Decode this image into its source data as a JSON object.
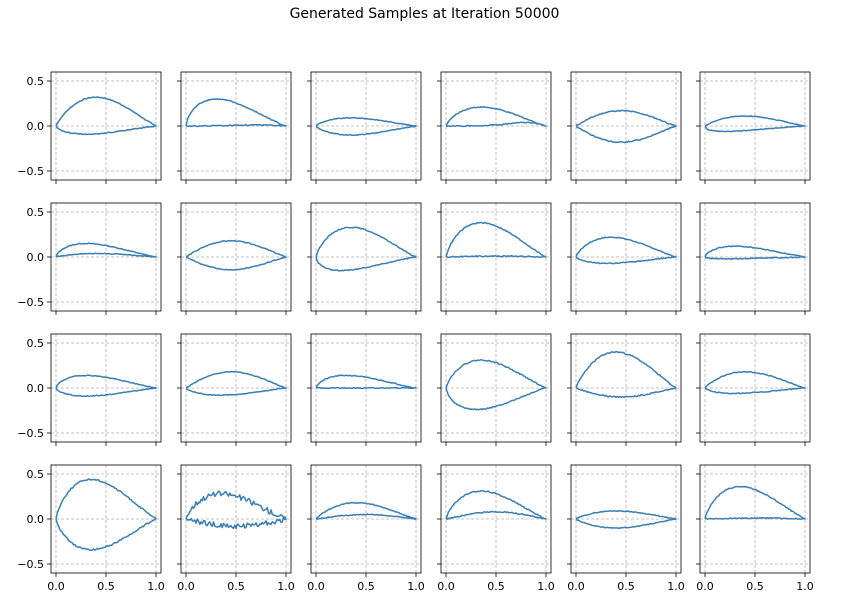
{
  "figure": {
    "title": "Generated Samples at Iteration 50000"
  },
  "colors": {
    "line": "#3a7fb3",
    "grid": "#b0b0b0",
    "axes": "#000000"
  },
  "chart_data": {
    "type": "line",
    "layout": {
      "rows": 4,
      "cols": 6
    },
    "shared_axes": true,
    "xlim": [
      -0.05,
      1.05
    ],
    "ylim": [
      -0.6,
      0.6
    ],
    "xticks": [
      0.0,
      0.5,
      1.0
    ],
    "xtick_labels": [
      "0.0",
      "0.5",
      "1.0"
    ],
    "yticks": [
      -0.5,
      0.0,
      0.5
    ],
    "ytick_labels": [
      "−0.5",
      "0.0",
      "0.5"
    ],
    "grid": true,
    "grid_style": "dashed",
    "xlabel": "",
    "ylabel": "",
    "series_model": "Each subplot is one closed airfoil outline: upper surface from leading edge (0,0) to trailing edge (1,0) with peak height 'upper' at chordwise position 'peak'; lower surface with extreme value 'lower' at position 'lpeak'. 'noise' is the visible jaggedness amplitude.",
    "samples": [
      {
        "upper": 0.32,
        "peak": 0.4,
        "lower": -0.09,
        "lpeak": 0.3,
        "noise": 0.005
      },
      {
        "upper": 0.3,
        "peak": 0.3,
        "lower": 0.01,
        "lpeak": 0.7,
        "noise": 0.006
      },
      {
        "upper": 0.09,
        "peak": 0.35,
        "lower": -0.1,
        "lpeak": 0.35,
        "noise": 0.004
      },
      {
        "upper": 0.21,
        "peak": 0.35,
        "lower": 0.04,
        "lpeak": 0.8,
        "noise": 0.005
      },
      {
        "upper": 0.17,
        "peak": 0.45,
        "lower": -0.18,
        "lpeak": 0.45,
        "noise": 0.006
      },
      {
        "upper": 0.11,
        "peak": 0.4,
        "lower": -0.06,
        "lpeak": 0.2,
        "noise": 0.004
      },
      {
        "upper": 0.15,
        "peak": 0.3,
        "lower": 0.04,
        "lpeak": 0.4,
        "noise": 0.004
      },
      {
        "upper": 0.18,
        "peak": 0.45,
        "lower": -0.14,
        "lpeak": 0.45,
        "noise": 0.005
      },
      {
        "upper": 0.33,
        "peak": 0.35,
        "lower": -0.15,
        "lpeak": 0.25,
        "noise": 0.005
      },
      {
        "upper": 0.38,
        "peak": 0.35,
        "lower": 0.01,
        "lpeak": 0.5,
        "noise": 0.006
      },
      {
        "upper": 0.22,
        "peak": 0.35,
        "lower": -0.07,
        "lpeak": 0.3,
        "noise": 0.005
      },
      {
        "upper": 0.12,
        "peak": 0.3,
        "lower": -0.02,
        "lpeak": 0.2,
        "noise": 0.005
      },
      {
        "upper": 0.14,
        "peak": 0.3,
        "lower": -0.09,
        "lpeak": 0.3,
        "noise": 0.004
      },
      {
        "upper": 0.18,
        "peak": 0.45,
        "lower": -0.08,
        "lpeak": 0.35,
        "noise": 0.004
      },
      {
        "upper": 0.14,
        "peak": 0.3,
        "lower": 0.0,
        "lpeak": 0.5,
        "noise": 0.005
      },
      {
        "upper": 0.31,
        "peak": 0.35,
        "lower": -0.24,
        "lpeak": 0.3,
        "noise": 0.006
      },
      {
        "upper": 0.4,
        "peak": 0.4,
        "lower": -0.1,
        "lpeak": 0.45,
        "noise": 0.007
      },
      {
        "upper": 0.18,
        "peak": 0.4,
        "lower": -0.06,
        "lpeak": 0.3,
        "noise": 0.005
      },
      {
        "upper": 0.44,
        "peak": 0.35,
        "lower": -0.34,
        "lpeak": 0.35,
        "noise": 0.008
      },
      {
        "upper": 0.28,
        "peak": 0.35,
        "lower": -0.08,
        "lpeak": 0.5,
        "noise": 0.03
      },
      {
        "upper": 0.18,
        "peak": 0.4,
        "lower": 0.05,
        "lpeak": 0.5,
        "noise": 0.005
      },
      {
        "upper": 0.31,
        "peak": 0.35,
        "lower": 0.08,
        "lpeak": 0.5,
        "noise": 0.006
      },
      {
        "upper": 0.09,
        "peak": 0.4,
        "lower": -0.1,
        "lpeak": 0.4,
        "noise": 0.004
      },
      {
        "upper": 0.36,
        "peak": 0.35,
        "lower": 0.01,
        "lpeak": 0.5,
        "noise": 0.006
      }
    ]
  }
}
